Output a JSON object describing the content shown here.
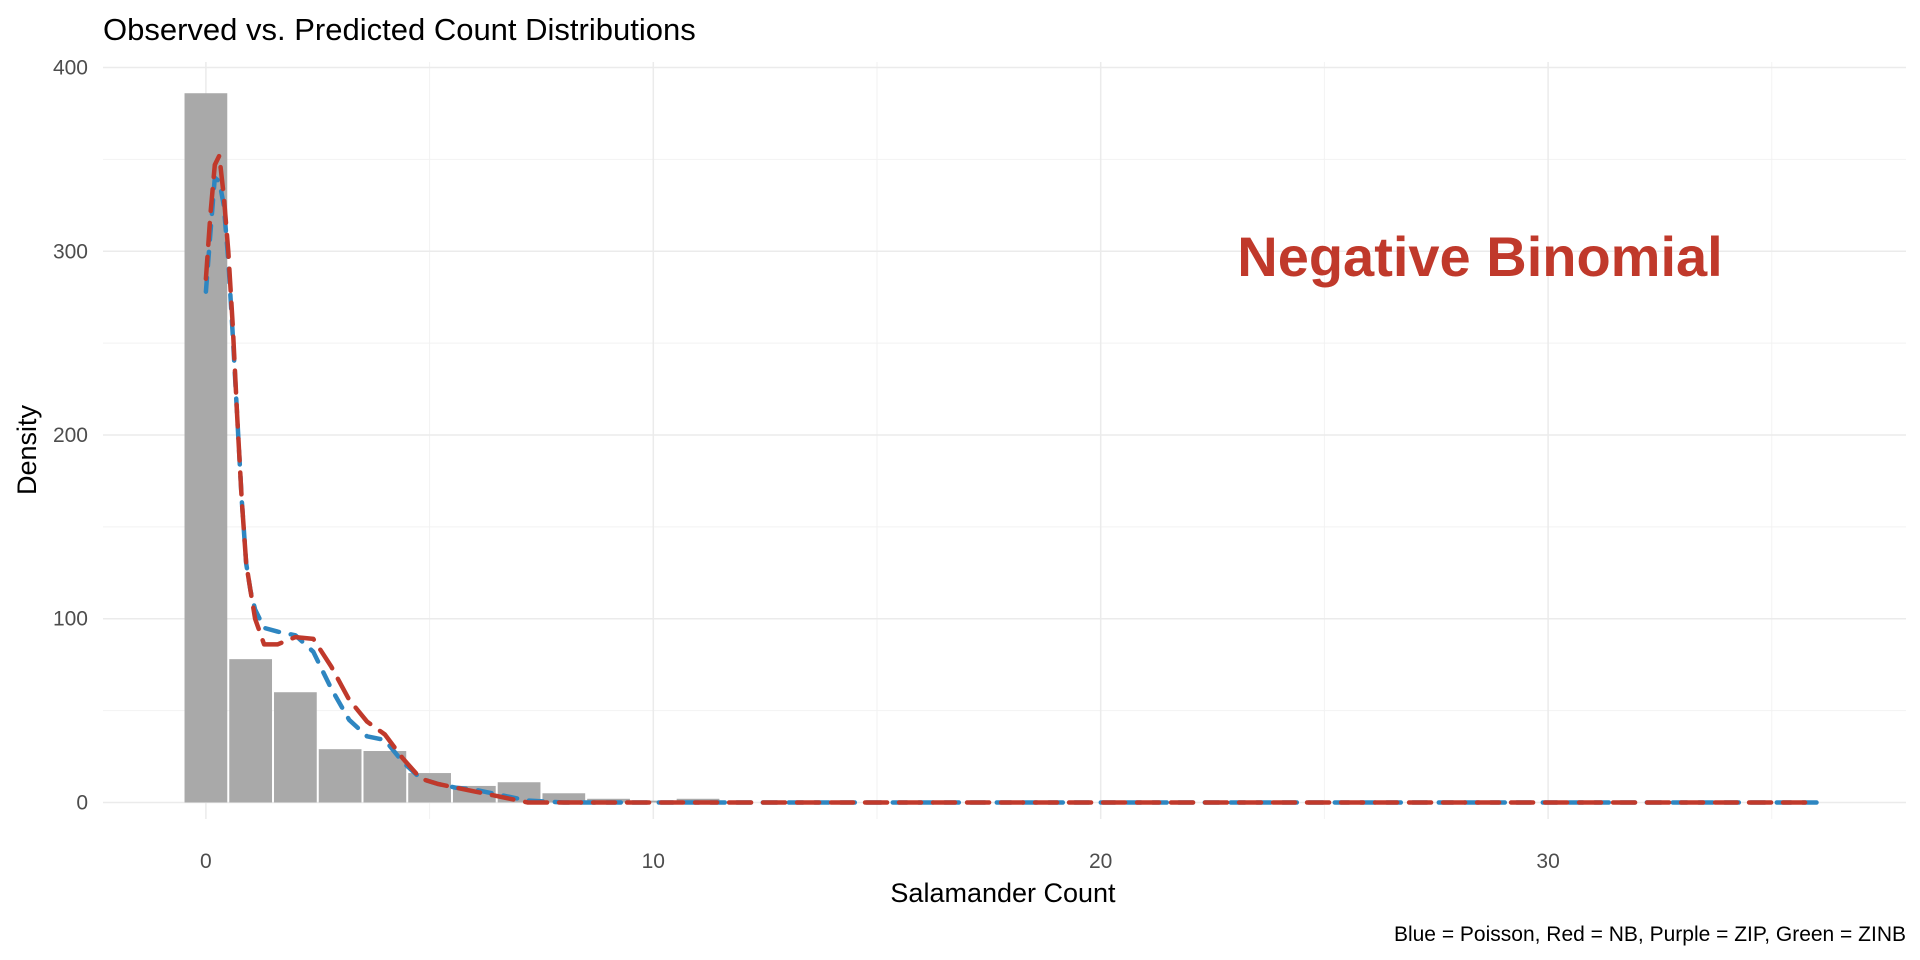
{
  "chart_data": {
    "type": "bar",
    "title": "Observed vs. Predicted Count Distributions",
    "xlabel": "Salamander Count",
    "ylabel": "Density",
    "caption": "Blue = Poisson, Red = NB, Purple = ZIP, Green = ZINB",
    "annotation": {
      "text": "Negative Binomial",
      "color": "#c0392b"
    },
    "xlim": [
      -2.3,
      38
    ],
    "ylim": [
      -9,
      403
    ],
    "x_ticks": [
      0,
      10,
      20,
      30
    ],
    "y_ticks": [
      0,
      100,
      200,
      300,
      400
    ],
    "grid": true,
    "bars": {
      "color": "#a9a9a9",
      "x": [
        0,
        1,
        2,
        3,
        4,
        5,
        6,
        7,
        8,
        9,
        10,
        11
      ],
      "values": [
        386,
        78,
        60,
        29,
        28,
        16,
        9,
        11,
        5,
        2,
        1,
        2
      ]
    },
    "series": [
      {
        "name": "Poisson",
        "color": "#2e86c1",
        "style": "dashed",
        "x": [
          0,
          0.1,
          0.2,
          0.3,
          0.4,
          0.5,
          0.6,
          0.7,
          0.8,
          0.9,
          1.0,
          1.1,
          1.3,
          1.6,
          2.0,
          2.4,
          2.8,
          3.2,
          3.6,
          4.0,
          4.4,
          4.8,
          5.2,
          5.6,
          6.0,
          6.4,
          6.8,
          7.2,
          8,
          9,
          10,
          12,
          15,
          20,
          25,
          30,
          36
        ],
        "y": [
          278,
          310,
          340,
          338,
          325,
          295,
          255,
          210,
          165,
          130,
          115,
          105,
          95,
          93,
          91,
          82,
          62,
          45,
          36,
          34,
          22,
          13,
          10,
          8,
          7,
          5,
          3,
          1,
          0,
          0,
          0,
          0,
          0,
          0,
          0,
          0,
          0
        ]
      },
      {
        "name": "NB",
        "color": "#c0392b",
        "style": "dashed",
        "x": [
          0,
          0.1,
          0.2,
          0.3,
          0.4,
          0.5,
          0.6,
          0.7,
          0.8,
          0.9,
          1.0,
          1.1,
          1.3,
          1.6,
          2.0,
          2.4,
          2.8,
          3.2,
          3.6,
          4.0,
          4.4,
          4.8,
          5.2,
          5.6,
          6.0,
          6.4,
          6.8,
          7.2,
          8,
          9,
          10,
          12,
          15,
          20,
          25,
          30,
          36
        ],
        "y": [
          285,
          320,
          347,
          352,
          330,
          300,
          260,
          210,
          165,
          130,
          115,
          100,
          86,
          86,
          90,
          89,
          74,
          56,
          44,
          37,
          24,
          13,
          10,
          8,
          6,
          4,
          2,
          0,
          0,
          0,
          0,
          0,
          0,
          0,
          0,
          0,
          0
        ]
      }
    ]
  }
}
